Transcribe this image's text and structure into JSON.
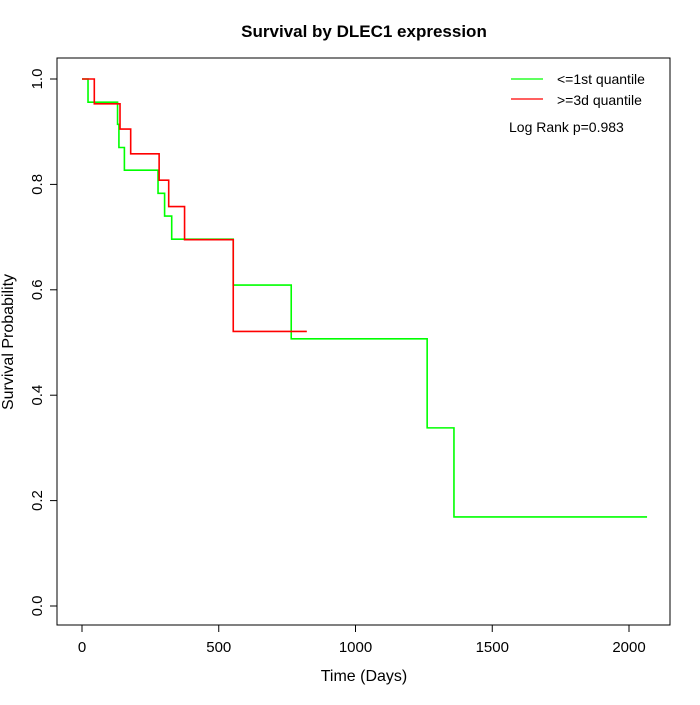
{
  "chart_data": {
    "type": "line",
    "title": "Survival by DLEC1 expression",
    "xlabel": "Time (Days)",
    "ylabel": "Survival Probability",
    "xlim": [
      0,
      2070
    ],
    "ylim": [
      0,
      1
    ],
    "xticks": [
      0,
      500,
      1000,
      1500,
      2000
    ],
    "yticks": [
      0.0,
      0.2,
      0.4,
      0.6,
      0.8,
      1.0
    ],
    "ytick_labels": [
      "0.0",
      "0.2",
      "0.4",
      "0.6",
      "0.8",
      "1.0"
    ],
    "xtick_labels": [
      "0",
      "500",
      "1000",
      "1500",
      "2000"
    ],
    "grid": false,
    "legend_position": "top-right",
    "annotation": "Log Rank p=0.983",
    "series": [
      {
        "name": "<=1st quantile",
        "color": "#00ff00",
        "step": true,
        "x": [
          0,
          22,
          130,
          135,
          155,
          278,
          302,
          328,
          553,
          765,
          1262,
          1360,
          2066
        ],
        "y": [
          1.0,
          0.956,
          0.914,
          0.87,
          0.827,
          0.783,
          0.74,
          0.696,
          0.609,
          0.507,
          0.338,
          0.169,
          0.169
        ]
      },
      {
        "name": ">=3d quantile",
        "color": "#ff0000",
        "step": true,
        "x": [
          0,
          45,
          139,
          178,
          282,
          317,
          375,
          553,
          822
        ],
        "y": [
          1.0,
          0.953,
          0.905,
          0.858,
          0.808,
          0.758,
          0.695,
          0.521,
          0.521
        ]
      }
    ]
  }
}
